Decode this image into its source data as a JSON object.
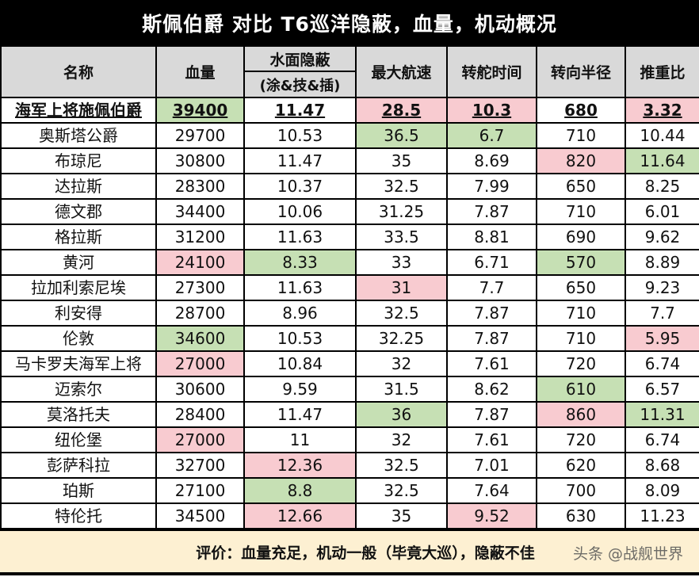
{
  "title": "斯佩伯爵 对比 T6巡洋隐蔽，血量，机动概况",
  "headers": {
    "name": "名称",
    "hp": "血量",
    "conceal_top": "水面隐蔽",
    "conceal_bottom": "(涂&技&插)",
    "speed": "最大航速",
    "rudder": "转舵时间",
    "turn_radius": "转向半径",
    "power_weight": "推重比"
  },
  "colors": {
    "good": "#c6e0b4",
    "bad": "#f8cbd0",
    "header_bg": "#d9d9d9",
    "footer_bg": "#fdf0d2"
  },
  "rows": [
    {
      "name": "海军上将施佩伯爵",
      "hp": "39400",
      "conceal": "11.47",
      "speed": "28.5",
      "rudder": "10.3",
      "turn": "680",
      "pw": "3.32",
      "featured": true,
      "hl": {
        "hp": "green",
        "speed": "red",
        "rudder": "red",
        "pw": "red"
      }
    },
    {
      "name": "奥斯塔公爵",
      "hp": "29700",
      "conceal": "10.53",
      "speed": "36.5",
      "rudder": "6.7",
      "turn": "710",
      "pw": "10.44",
      "hl": {
        "speed": "green",
        "rudder": "green"
      }
    },
    {
      "name": "布琼尼",
      "hp": "30800",
      "conceal": "11.47",
      "speed": "35",
      "rudder": "8.69",
      "turn": "820",
      "pw": "11.64",
      "hl": {
        "turn": "red",
        "pw": "green"
      }
    },
    {
      "name": "达拉斯",
      "hp": "28300",
      "conceal": "10.37",
      "speed": "32.5",
      "rudder": "7.99",
      "turn": "650",
      "pw": "8.25",
      "hl": {}
    },
    {
      "name": "德文郡",
      "hp": "34400",
      "conceal": "10.06",
      "speed": "31.25",
      "rudder": "7.87",
      "turn": "710",
      "pw": "6.01",
      "hl": {}
    },
    {
      "name": "格拉斯",
      "hp": "31200",
      "conceal": "11.63",
      "speed": "33.5",
      "rudder": "8.81",
      "turn": "690",
      "pw": "9.62",
      "hl": {}
    },
    {
      "name": "黄河",
      "hp": "24100",
      "conceal": "8.33",
      "speed": "33",
      "rudder": "6.71",
      "turn": "570",
      "pw": "8.89",
      "hl": {
        "hp": "red",
        "conceal": "green",
        "turn": "green"
      }
    },
    {
      "name": "拉加利索尼埃",
      "hp": "27300",
      "conceal": "11.63",
      "speed": "31",
      "rudder": "7.7",
      "turn": "650",
      "pw": "9.23",
      "hl": {
        "speed": "red"
      }
    },
    {
      "name": "利安得",
      "hp": "28700",
      "conceal": "8.96",
      "speed": "32.5",
      "rudder": "7.87",
      "turn": "710",
      "pw": "7.7",
      "hl": {}
    },
    {
      "name": "伦敦",
      "hp": "34600",
      "conceal": "10.53",
      "speed": "32.25",
      "rudder": "7.87",
      "turn": "710",
      "pw": "5.95",
      "hl": {
        "hp": "green",
        "pw": "red"
      }
    },
    {
      "name": "马卡罗夫海军上将",
      "hp": "27000",
      "conceal": "10.84",
      "speed": "32",
      "rudder": "7.61",
      "turn": "720",
      "pw": "6.74",
      "hl": {
        "hp": "red"
      }
    },
    {
      "name": "迈索尔",
      "hp": "30600",
      "conceal": "9.59",
      "speed": "31.5",
      "rudder": "8.62",
      "turn": "610",
      "pw": "6.57",
      "hl": {
        "turn": "green"
      }
    },
    {
      "name": "莫洛托夫",
      "hp": "28400",
      "conceal": "11.47",
      "speed": "36",
      "rudder": "7.87",
      "turn": "860",
      "pw": "11.31",
      "hl": {
        "speed": "green",
        "turn": "red",
        "pw": "green"
      }
    },
    {
      "name": "纽伦堡",
      "hp": "27000",
      "conceal": "11",
      "speed": "32",
      "rudder": "7.61",
      "turn": "720",
      "pw": "6.74",
      "hl": {
        "hp": "red"
      }
    },
    {
      "name": "彭萨科拉",
      "hp": "32700",
      "conceal": "12.36",
      "speed": "32.5",
      "rudder": "7.01",
      "turn": "620",
      "pw": "8.68",
      "hl": {
        "conceal": "red"
      }
    },
    {
      "name": "珀斯",
      "hp": "27100",
      "conceal": "8.8",
      "speed": "32.5",
      "rudder": "7.64",
      "turn": "700",
      "pw": "8.09",
      "hl": {
        "conceal": "green"
      }
    },
    {
      "name": "特伦托",
      "hp": "34500",
      "conceal": "12.66",
      "speed": "35",
      "rudder": "9.52",
      "turn": "630",
      "pw": "11.23",
      "hl": {
        "conceal": "red",
        "rudder": "red"
      }
    }
  ],
  "footer": {
    "text": "评价：血量充足，机动一般（毕竟大巡），隐蔽不佳",
    "watermark": "头条 @战舰世界"
  }
}
